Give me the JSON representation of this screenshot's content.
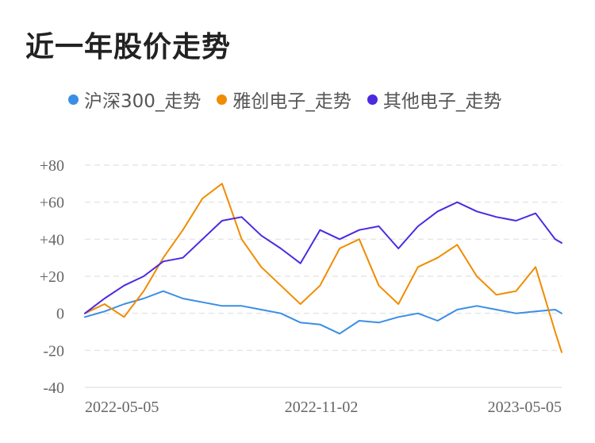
{
  "chart_data": {
    "type": "line",
    "title": "近一年股价走势",
    "xlabel": "",
    "ylabel": "",
    "x_ticks": [
      "2022-05-05",
      "2022-11-02",
      "2023-05-05"
    ],
    "y_ticks": [
      "+80",
      "+60",
      "+40",
      "+20",
      "0",
      "-20",
      "-40"
    ],
    "y_tick_values": [
      80,
      60,
      40,
      20,
      0,
      -20,
      -40
    ],
    "ylim": [
      -40,
      80
    ],
    "x_range": [
      "2022-05-05",
      "2023-05-05"
    ],
    "grid": true,
    "legend": "top",
    "series": [
      {
        "name": "沪深300_走势",
        "color": "#3a8ee6",
        "x": [
          "2022-05-05",
          "2022-05-20",
          "2022-06-04",
          "2022-06-19",
          "2022-07-04",
          "2022-07-19",
          "2022-08-03",
          "2022-08-18",
          "2022-09-02",
          "2022-09-17",
          "2022-10-02",
          "2022-10-17",
          "2022-11-01",
          "2022-11-16",
          "2022-12-01",
          "2022-12-16",
          "2022-12-31",
          "2023-01-15",
          "2023-01-30",
          "2023-02-14",
          "2023-03-01",
          "2023-03-16",
          "2023-03-31",
          "2023-04-15",
          "2023-04-30",
          "2023-05-05"
        ],
        "values": [
          -2,
          1,
          5,
          8,
          12,
          8,
          6,
          4,
          4,
          2,
          0,
          -5,
          -6,
          -11,
          -4,
          -5,
          -2,
          0,
          -4,
          2,
          4,
          2,
          0,
          1,
          2,
          0
        ]
      },
      {
        "name": "雅创电子_走势",
        "color": "#f08c00",
        "x": [
          "2022-05-05",
          "2022-05-20",
          "2022-06-04",
          "2022-06-19",
          "2022-07-04",
          "2022-07-19",
          "2022-08-03",
          "2022-08-18",
          "2022-09-02",
          "2022-09-17",
          "2022-10-02",
          "2022-10-17",
          "2022-11-01",
          "2022-11-16",
          "2022-12-01",
          "2022-12-16",
          "2022-12-31",
          "2023-01-15",
          "2023-01-30",
          "2023-02-14",
          "2023-03-01",
          "2023-03-16",
          "2023-03-31",
          "2023-04-15",
          "2023-04-30",
          "2023-05-05"
        ],
        "values": [
          0,
          5,
          -2,
          12,
          30,
          45,
          62,
          70,
          40,
          25,
          15,
          5,
          15,
          35,
          40,
          15,
          5,
          25,
          30,
          37,
          20,
          10,
          12,
          25,
          -10,
          -21
        ]
      },
      {
        "name": "其他电子_走势",
        "color": "#4b2ae0",
        "x": [
          "2022-05-05",
          "2022-05-20",
          "2022-06-04",
          "2022-06-19",
          "2022-07-04",
          "2022-07-19",
          "2022-08-03",
          "2022-08-18",
          "2022-09-02",
          "2022-09-17",
          "2022-10-02",
          "2022-10-17",
          "2022-11-01",
          "2022-11-16",
          "2022-12-01",
          "2022-12-16",
          "2022-12-31",
          "2023-01-15",
          "2023-01-30",
          "2023-02-14",
          "2023-03-01",
          "2023-03-16",
          "2023-03-31",
          "2023-04-15",
          "2023-04-30",
          "2023-05-05"
        ],
        "values": [
          0,
          8,
          15,
          20,
          28,
          30,
          40,
          50,
          52,
          42,
          35,
          27,
          45,
          40,
          45,
          47,
          35,
          47,
          55,
          60,
          55,
          52,
          50,
          54,
          40,
          38
        ]
      }
    ]
  }
}
